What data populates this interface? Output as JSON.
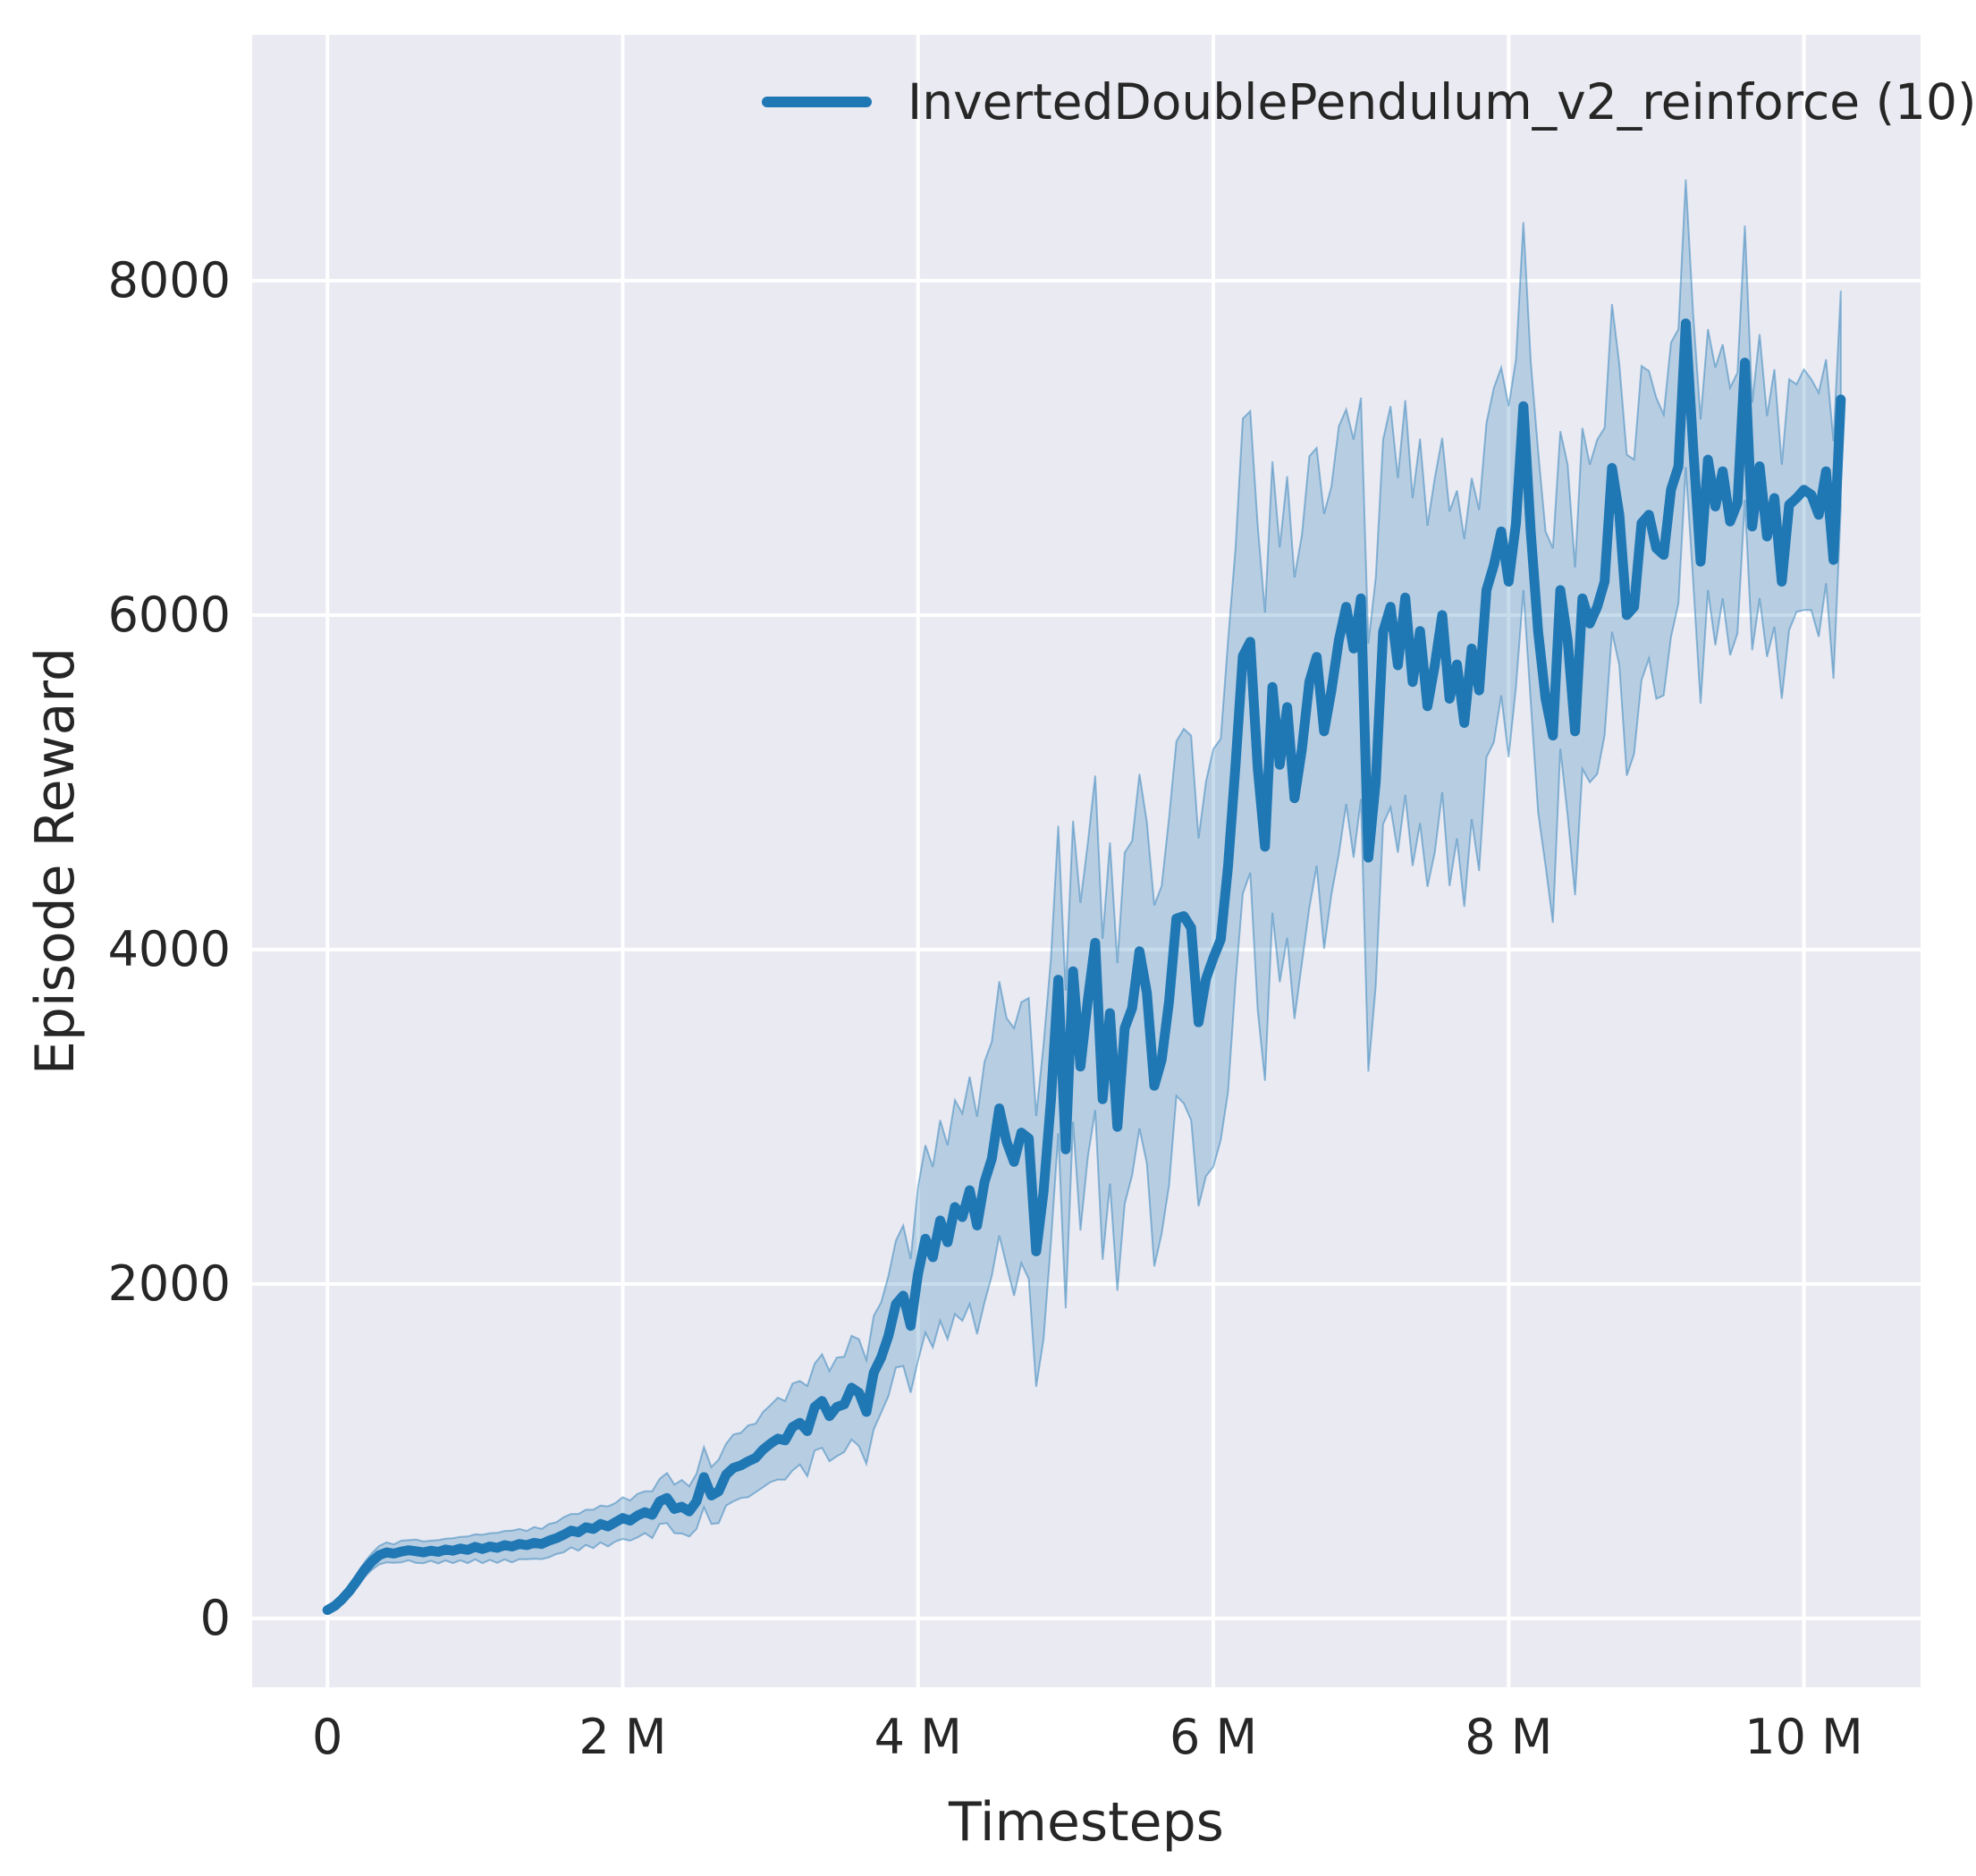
{
  "chart_data": {
    "type": "line",
    "title": "",
    "xlabel": "Timesteps",
    "ylabel": "Episode Reward",
    "x_unit": "millions of timesteps",
    "xlim": [
      -0.51,
      10.79
    ],
    "ylim": [
      -412,
      9470
    ],
    "grid": true,
    "legend_position": "upper center, inside axes, no frame",
    "x_ticks": [
      {
        "label": "0",
        "value": 0
      },
      {
        "label": "2 M",
        "value": 2
      },
      {
        "label": "4 M",
        "value": 4
      },
      {
        "label": "6 M",
        "value": 6
      },
      {
        "label": "8 M",
        "value": 8
      },
      {
        "label": "10 M",
        "value": 10
      }
    ],
    "y_ticks": [
      {
        "label": "8000",
        "value": 8000
      },
      {
        "label": "6000",
        "value": 6000
      },
      {
        "label": "4000",
        "value": 4000
      },
      {
        "label": "2000",
        "value": 2000
      },
      {
        "label": "0",
        "value": 0
      }
    ],
    "colors": {
      "axes_background": "#eaeaf2",
      "figure_background": "#ffffff",
      "gridline": "#ffffff",
      "text": "#262626"
    },
    "series": [
      {
        "name": "InvertedDoublePendulum_v2_reinforce (10)",
        "line_color": "#1f77b4",
        "band_fill": "rgba(31,119,180,0.25)",
        "band_edge": "rgba(31,119,180,0.45)",
        "x_start_M": 0,
        "x_step_M": 0.05,
        "mean": [
          50,
          75,
          115,
          165,
          225,
          290,
          340,
          378,
          395,
          388,
          400,
          408,
          402,
          395,
          405,
          398,
          412,
          405,
          418,
          410,
          428,
          415,
          430,
          422,
          438,
          430,
          445,
          438,
          452,
          445,
          465,
          480,
          500,
          525,
          515,
          545,
          535,
          565,
          550,
          575,
          600,
          585,
          615,
          635,
          620,
          700,
          720,
          655,
          668,
          640,
          700,
          845,
          735,
          760,
          860,
          900,
          915,
          940,
          960,
          1010,
          1045,
          1075,
          1065,
          1145,
          1170,
          1120,
          1265,
          1300,
          1210,
          1265,
          1280,
          1380,
          1350,
          1235,
          1470,
          1560,
          1690,
          1880,
          1930,
          1750,
          2060,
          2270,
          2160,
          2380,
          2250,
          2460,
          2400,
          2560,
          2350,
          2610,
          2750,
          3050,
          2850,
          2730,
          2905,
          2870,
          2195,
          2550,
          3100,
          3820,
          2805,
          3870,
          3300,
          3700,
          4040,
          3105,
          3620,
          2940,
          3530,
          3650,
          3990,
          3740,
          3185,
          3340,
          3690,
          4185,
          4200,
          4130,
          3565,
          3825,
          3950,
          4060,
          4500,
          5100,
          5755,
          5840,
          5090,
          4615,
          5570,
          5105,
          5450,
          4905,
          5200,
          5600,
          5750,
          5305,
          5550,
          5850,
          6050,
          5800,
          6100,
          4550,
          5005,
          5900,
          6050,
          5700,
          6105,
          5600,
          5905,
          5455,
          5700,
          6000,
          5500,
          5705,
          5355,
          5800,
          5550,
          6150,
          6300,
          6500,
          6200,
          6550,
          7250,
          6500,
          5900,
          5500,
          5280,
          6150,
          5850,
          5305,
          6100,
          5950,
          6050,
          6200,
          6880,
          6600,
          6000,
          6050,
          6550,
          6600,
          6400,
          6360,
          6750,
          6890,
          7745,
          7000,
          6320,
          6930,
          6650,
          6860,
          6560,
          6670,
          7510,
          6530,
          6890,
          6470,
          6700,
          6200,
          6660,
          6700,
          6750,
          6720,
          6600,
          6860,
          6330,
          7290
        ],
        "spread": [
          20,
          25,
          30,
          35,
          40,
          45,
          50,
          55,
          60,
          55,
          65,
          60,
          70,
          65,
          60,
          70,
          65,
          75,
          70,
          80,
          75,
          85,
          80,
          90,
          85,
          95,
          90,
          85,
          95,
          90,
          100,
          95,
          105,
          100,
          110,
          105,
          115,
          110,
          120,
          115,
          125,
          120,
          130,
          125,
          140,
          135,
          150,
          145,
          160,
          150,
          165,
          180,
          170,
          190,
          185,
          200,
          195,
          215,
          205,
          225,
          230,
          245,
          235,
          260,
          250,
          270,
          260,
          280,
          270,
          295,
          285,
          310,
          320,
          310,
          340,
          330,
          360,
          380,
          420,
          400,
          520,
          560,
          540,
          600,
          580,
          640,
          620,
          680,
          650,
          720,
          700,
          760,
          740,
          800,
          780,
          840,
          810,
          880,
          850,
          920,
          950,
          900,
          980,
          940,
          1000,
          960,
          1020,
          980,
          1050,
          1000,
          1060,
          1020,
          1080,
          1040,
          1100,
          1060,
          1120,
          1150,
          1100,
          1180,
          1250,
          1200,
          1350,
          1300,
          1420,
          1380,
          1450,
          1400,
          1350,
          1300,
          1380,
          1320,
          1280,
          1350,
          1250,
          1300,
          1220,
          1280,
          1180,
          1250,
          1200,
          1280,
          1220,
          1150,
          1200,
          1120,
          1180,
          1100,
          1150,
          1080,
          1120,
          1060,
          1120,
          1040,
          1100,
          1020,
          1080,
          1000,
          1060,
          980,
          1050,
          980,
          1100,
          1020,
          1080,
          1000,
          1120,
          950,
          1050,
          980,
          1020,
          950,
          1000,
          920,
          980,
          900,
          960,
          880,
          940,
          860,
          900,
          840,
          880,
          820,
          860,
          800,
          850,
          780,
          830,
          760,
          800,
          780,
          820,
          740,
          790,
          720,
          770,
          700,
          750,
          680,
          720,
          690,
          730,
          670,
          710,
          650
        ]
      }
    ]
  }
}
